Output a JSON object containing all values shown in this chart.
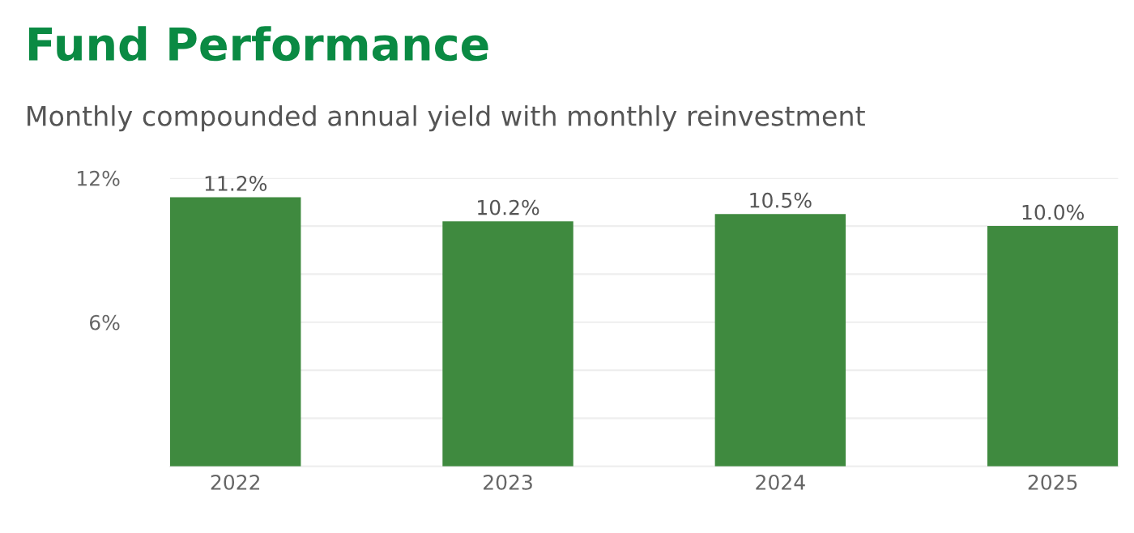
{
  "chart_data": {
    "type": "bar",
    "title": "Fund Performance",
    "subtitle": "Monthly compounded annual yield with monthly reinvestment",
    "categories": [
      "2022",
      "2023",
      "2024",
      "2025"
    ],
    "values": [
      11.2,
      10.2,
      10.5,
      10.0
    ],
    "value_labels": [
      "11.2%",
      "10.2%",
      "10.5%",
      "10.0%"
    ],
    "color": "#3f8a3f",
    "ylim": [
      0,
      12
    ],
    "yticks": [
      {
        "value": 0,
        "label": null
      },
      {
        "value": 2,
        "label": null
      },
      {
        "value": 4,
        "label": null
      },
      {
        "value": 6,
        "label": "6%"
      },
      {
        "value": 8,
        "label": null
      },
      {
        "value": 10,
        "label": null
      },
      {
        "value": 12,
        "label": "12%"
      }
    ],
    "grid": "y",
    "legend": false
  }
}
